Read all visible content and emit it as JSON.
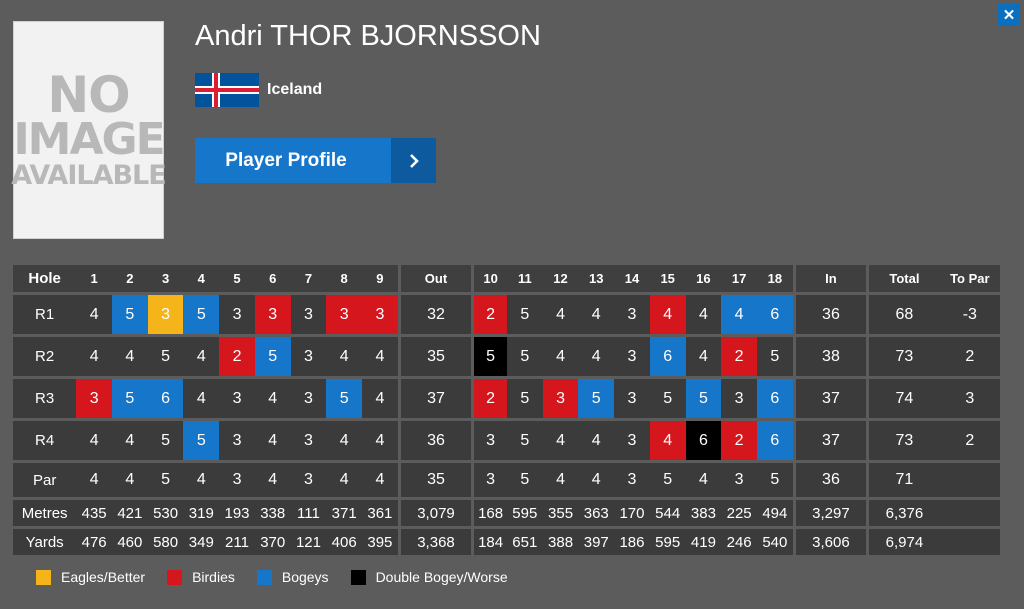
{
  "player": {
    "name": "Andri THOR BJORNSSON",
    "country": "Iceland",
    "profile_label": "Player Profile"
  },
  "photo": {
    "line1": "NO",
    "line2": "IMAGE",
    "line3": "AVAILABLE"
  },
  "close_label": "✕",
  "colors": {
    "eagle": "#f5b41a",
    "birdie": "#d6161d",
    "bogey": "#1676c9",
    "double": "#000000",
    "accent": "#1676c9"
  },
  "scorecard": {
    "headers": [
      "Hole",
      "1",
      "2",
      "3",
      "4",
      "5",
      "6",
      "7",
      "8",
      "9",
      "Out",
      "10",
      "11",
      "12",
      "13",
      "14",
      "15",
      "16",
      "17",
      "18",
      "In",
      "Total",
      "To Par"
    ],
    "rounds": [
      {
        "label": "R1",
        "front": [
          4,
          5,
          3,
          5,
          3,
          3,
          3,
          3,
          3
        ],
        "out": "32",
        "back": [
          2,
          5,
          4,
          4,
          3,
          4,
          4,
          4,
          6
        ],
        "in": "36",
        "total": "68",
        "topar": "-3"
      },
      {
        "label": "R2",
        "front": [
          4,
          4,
          5,
          4,
          2,
          5,
          3,
          4,
          4
        ],
        "out": "35",
        "back": [
          5,
          5,
          4,
          4,
          3,
          6,
          4,
          2,
          5
        ],
        "in": "38",
        "total": "73",
        "topar": "2"
      },
      {
        "label": "R3",
        "front": [
          3,
          5,
          6,
          4,
          3,
          4,
          3,
          5,
          4
        ],
        "out": "37",
        "back": [
          2,
          5,
          3,
          5,
          3,
          5,
          5,
          3,
          6
        ],
        "in": "37",
        "total": "74",
        "topar": "3"
      },
      {
        "label": "R4",
        "front": [
          4,
          4,
          5,
          5,
          3,
          4,
          3,
          4,
          4
        ],
        "out": "36",
        "back": [
          3,
          5,
          4,
          4,
          3,
          4,
          6,
          2,
          6
        ],
        "in": "37",
        "total": "73",
        "topar": "2"
      }
    ],
    "par": {
      "label": "Par",
      "front": [
        4,
        4,
        5,
        4,
        3,
        4,
        3,
        4,
        4
      ],
      "out": "35",
      "back": [
        3,
        5,
        4,
        4,
        3,
        5,
        4,
        3,
        5
      ],
      "in": "36",
      "total": "71"
    },
    "metres": {
      "label": "Metres",
      "front": [
        "435",
        "421",
        "530",
        "319",
        "193",
        "338",
        "111",
        "371",
        "361"
      ],
      "out": "3,079",
      "back": [
        "168",
        "595",
        "355",
        "363",
        "170",
        "544",
        "383",
        "225",
        "494"
      ],
      "in": "3,297",
      "total": "6,376"
    },
    "yards": {
      "label": "Yards",
      "front": [
        "476",
        "460",
        "580",
        "349",
        "211",
        "370",
        "121",
        "406",
        "395"
      ],
      "out": "3,368",
      "back": [
        "184",
        "651",
        "388",
        "397",
        "186",
        "595",
        "419",
        "246",
        "540"
      ],
      "in": "3,606",
      "total": "6,974"
    }
  },
  "legend": [
    {
      "label": "Eagles/Better",
      "key": "eagle"
    },
    {
      "label": "Birdies",
      "key": "birdie"
    },
    {
      "label": "Bogeys",
      "key": "bogey"
    },
    {
      "label": "Double Bogey/Worse",
      "key": "double"
    }
  ]
}
